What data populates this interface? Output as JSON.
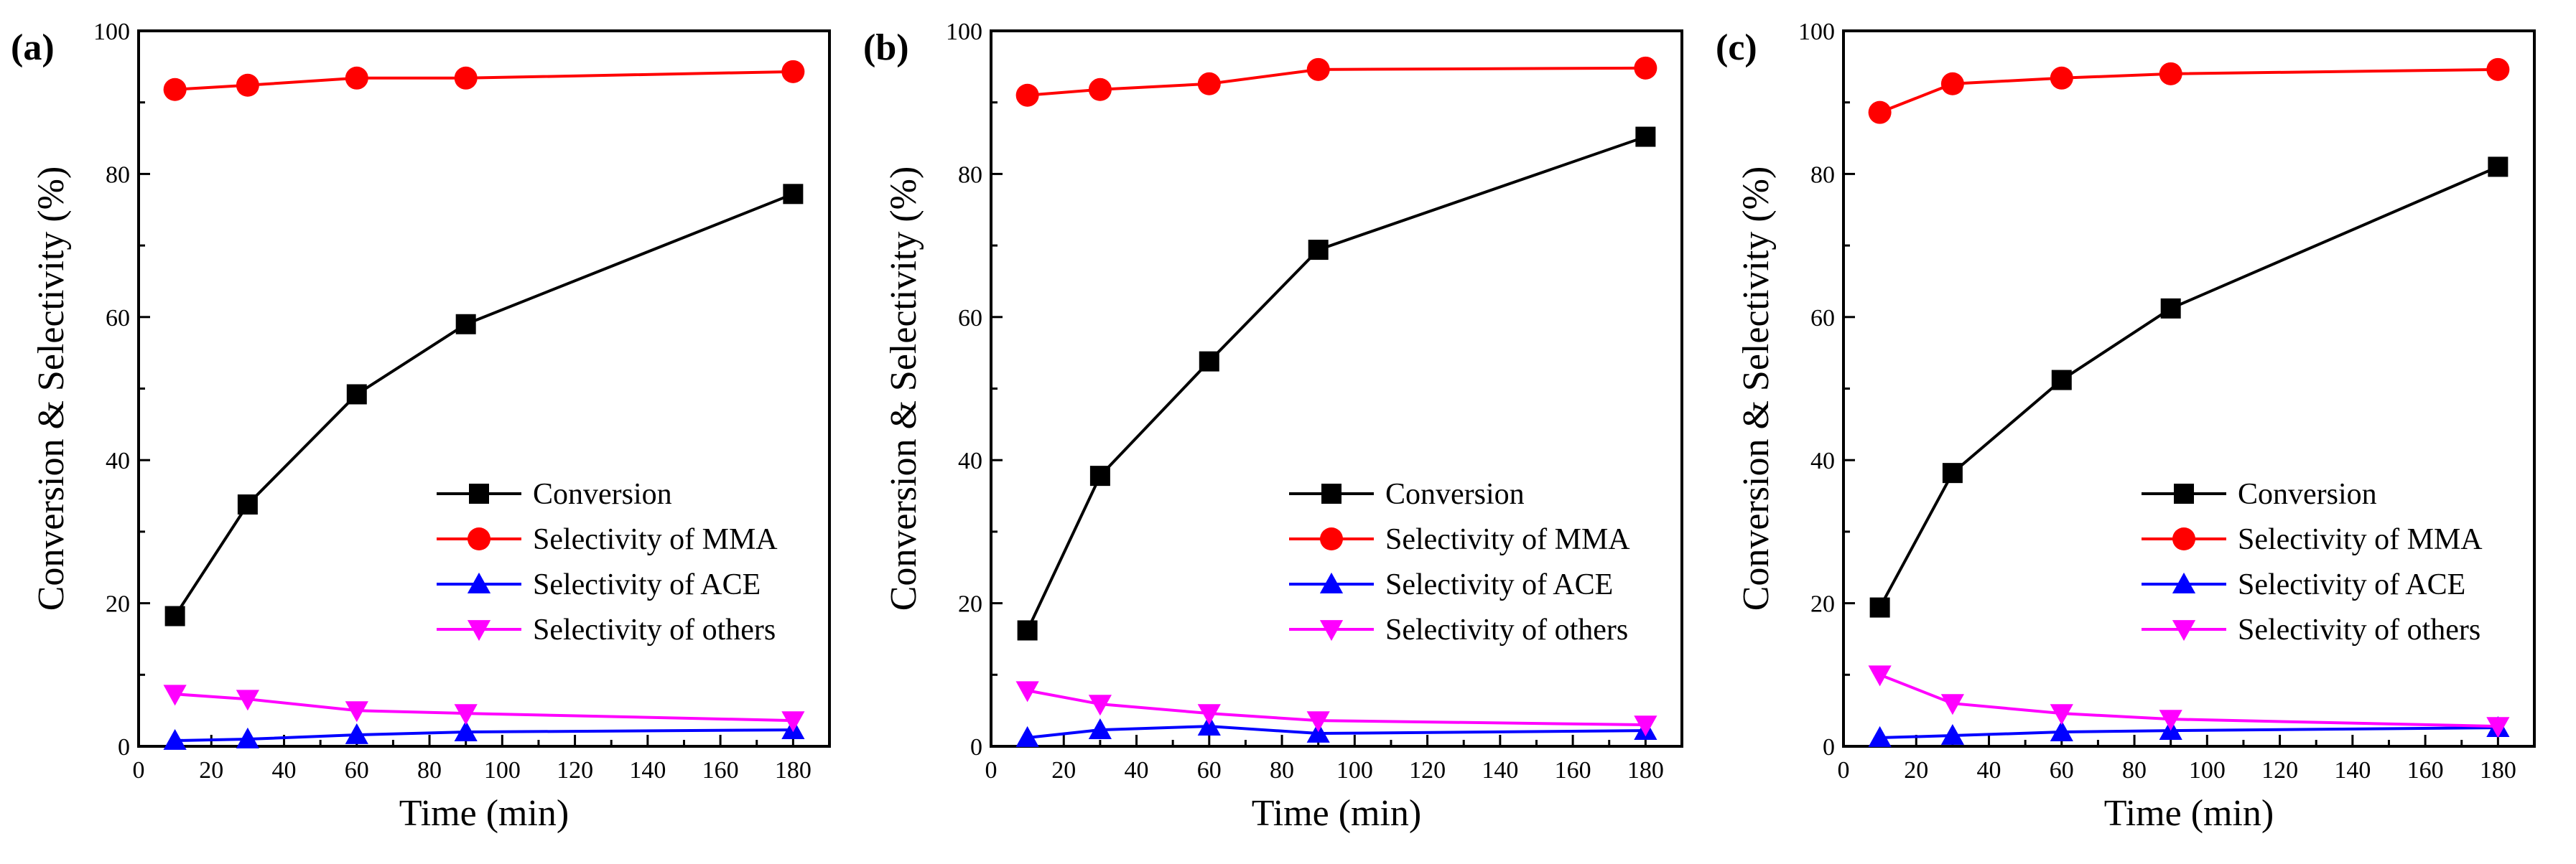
{
  "series_styles": [
    {
      "name": "Conversion",
      "color": "#000000",
      "marker": "square"
    },
    {
      "name": "Selectivity of MMA",
      "color": "#ff0000",
      "marker": "circle"
    },
    {
      "name": "Selectivity of ACE",
      "color": "#0000ff",
      "marker": "triangle-up"
    },
    {
      "name": "Selectivity of others",
      "color": "#ff00ff",
      "marker": "triangle-down"
    }
  ],
  "chart_data": [
    {
      "type": "line",
      "panel_label": "(a)",
      "xlabel": "Time (min)",
      "ylabel": "Conversion & Selectivity (%)",
      "xlim": [
        0,
        190
      ],
      "ylim": [
        0,
        100
      ],
      "xticks": [
        0,
        20,
        40,
        60,
        80,
        100,
        120,
        140,
        160,
        180
      ],
      "yticks": [
        0,
        20,
        40,
        60,
        80,
        100
      ],
      "legend_position": "lower-right",
      "x": [
        10,
        30,
        60,
        90,
        180
      ],
      "series": [
        {
          "name": "Conversion",
          "values": [
            18.2,
            33.8,
            49.2,
            59.0,
            77.2
          ]
        },
        {
          "name": "Selectivity of MMA",
          "values": [
            91.8,
            92.4,
            93.4,
            93.4,
            94.3
          ]
        },
        {
          "name": "Selectivity of ACE",
          "values": [
            0.8,
            1.0,
            1.6,
            2.0,
            2.3
          ]
        },
        {
          "name": "Selectivity of others",
          "values": [
            7.3,
            6.6,
            5.0,
            4.6,
            3.6
          ]
        }
      ]
    },
    {
      "type": "line",
      "panel_label": "(b)",
      "xlabel": "Time (min)",
      "ylabel": "Conversion & Selectivity (%)",
      "xlim": [
        0,
        190
      ],
      "ylim": [
        0,
        100
      ],
      "xticks": [
        0,
        20,
        40,
        60,
        80,
        100,
        120,
        140,
        160,
        180
      ],
      "yticks": [
        0,
        20,
        40,
        60,
        80,
        100
      ],
      "legend_position": "lower-right",
      "x": [
        10,
        30,
        60,
        90,
        180
      ],
      "series": [
        {
          "name": "Conversion",
          "values": [
            16.2,
            37.8,
            53.8,
            69.4,
            85.2
          ]
        },
        {
          "name": "Selectivity of MMA",
          "values": [
            91.0,
            91.8,
            92.6,
            94.6,
            94.8
          ]
        },
        {
          "name": "Selectivity of ACE",
          "values": [
            1.2,
            2.3,
            2.8,
            1.8,
            2.2
          ]
        },
        {
          "name": "Selectivity of others",
          "values": [
            7.8,
            5.9,
            4.6,
            3.6,
            3.0
          ]
        }
      ]
    },
    {
      "type": "line",
      "panel_label": "(c)",
      "xlabel": "Time (min)",
      "ylabel": "Conversion & Selectivity (%)",
      "xlim": [
        0,
        190
      ],
      "ylim": [
        0,
        100
      ],
      "xticks": [
        0,
        20,
        40,
        60,
        80,
        100,
        120,
        140,
        160,
        180
      ],
      "yticks": [
        0,
        20,
        40,
        60,
        80,
        100
      ],
      "legend_position": "lower-right",
      "x": [
        10,
        30,
        60,
        90,
        180
      ],
      "series": [
        {
          "name": "Conversion",
          "values": [
            19.4,
            38.2,
            51.2,
            61.2,
            81.0
          ]
        },
        {
          "name": "Selectivity of MMA",
          "values": [
            88.6,
            92.6,
            93.4,
            94.0,
            94.6
          ]
        },
        {
          "name": "Selectivity of ACE",
          "values": [
            1.2,
            1.5,
            2.0,
            2.2,
            2.6
          ]
        },
        {
          "name": "Selectivity of others",
          "values": [
            10.0,
            6.0,
            4.6,
            3.8,
            2.8
          ]
        }
      ]
    }
  ]
}
